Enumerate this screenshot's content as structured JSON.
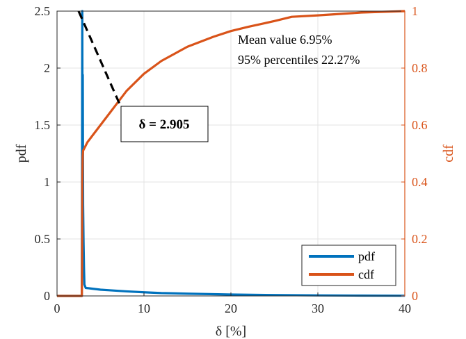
{
  "colors": {
    "pdf": "#0072BD",
    "cdf": "#D95319",
    "left_axis": "#262626",
    "right_axis": "#D95319",
    "grid": "#e3e3e3"
  },
  "chart_data": {
    "type": "line",
    "title": "",
    "xlabel": "δ [%]",
    "ylabel_left": "pdf",
    "ylabel_right": "cdf",
    "xlim": [
      0,
      40
    ],
    "ylim_left": [
      0,
      2.5
    ],
    "ylim_right": [
      0,
      1
    ],
    "x_ticks": [
      "0",
      "10",
      "20",
      "30",
      "40"
    ],
    "y_left_ticks": [
      "0",
      "0.5",
      "1",
      "1.5",
      "2",
      "2.5"
    ],
    "y_right_ticks": [
      "0",
      "0.2",
      "0.4",
      "0.6",
      "0.8",
      "1"
    ],
    "grid": true,
    "legend_position": "bottom-right",
    "series": [
      {
        "name": "pdf",
        "axis": "left",
        "x": [
          0,
          2.85,
          2.88,
          2.905,
          2.93,
          2.96,
          3.0,
          3.05,
          3.1,
          3.15,
          3.3,
          3.6,
          4,
          5,
          6,
          8,
          10,
          12,
          15,
          20,
          25,
          30,
          35,
          40
        ],
        "y": [
          0,
          0,
          1.2,
          2.5,
          1.3,
          1.94,
          0.8,
          0.47,
          0.25,
          0.1,
          0.07,
          0.068,
          0.064,
          0.055,
          0.05,
          0.04,
          0.032,
          0.025,
          0.02,
          0.012,
          0.008,
          0.005,
          0.003,
          0.002
        ]
      },
      {
        "name": "cdf",
        "axis": "right",
        "x": [
          0,
          2.85,
          2.88,
          2.905,
          2.95,
          3.0,
          3.5,
          4,
          5,
          6,
          8,
          10,
          12,
          15,
          18,
          20,
          22,
          25,
          27,
          30,
          35,
          40
        ],
        "y": [
          0,
          0,
          0.1,
          0.4,
          0.49,
          0.51,
          0.54,
          0.56,
          0.6,
          0.64,
          0.72,
          0.78,
          0.825,
          0.875,
          0.91,
          0.93,
          0.945,
          0.965,
          0.98,
          0.985,
          0.995,
          1.0
        ]
      }
    ],
    "annotations": {
      "mean": "Mean value 6.95%",
      "percentile": "95% percentiles 22.27%",
      "delta": "δ = 2.905"
    }
  }
}
